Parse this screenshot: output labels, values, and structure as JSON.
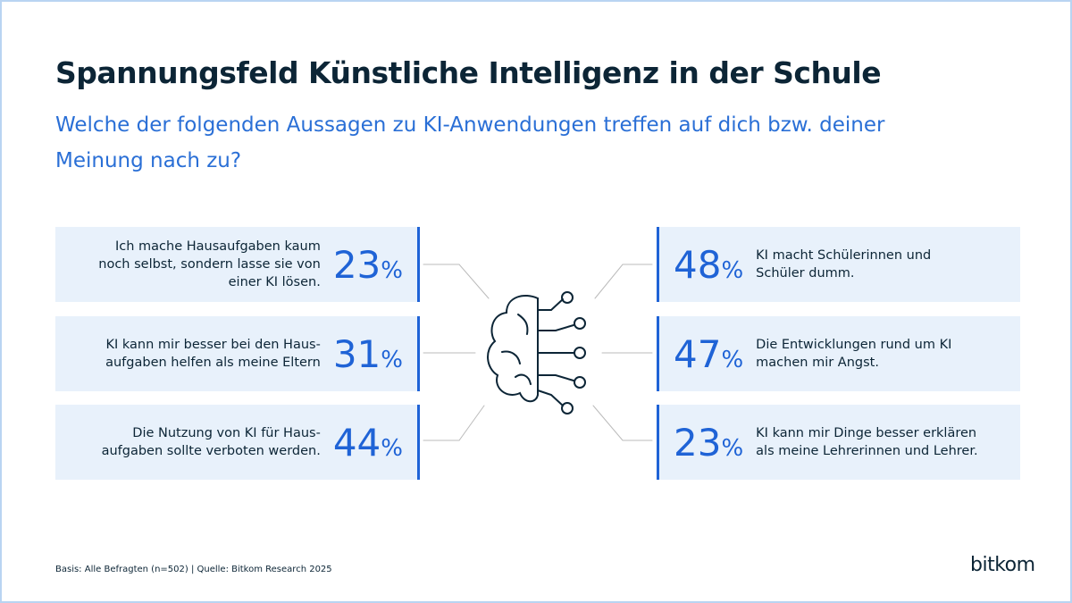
{
  "header": {
    "title": "Spannungsfeld Künstliche Intelligenz in der Schule",
    "subtitle": "Welche der folgenden Aussagen zu KI-Anwendungen treffen auf dich bzw. deiner Meinung nach zu?"
  },
  "items_left": [
    {
      "text": "Ich mache Hausaufgaben kaum noch selbst, sondern lasse sie von einer KI lösen.",
      "value": 23,
      "unit": "%"
    },
    {
      "text": "KI kann mir besser bei den Haus­aufgaben helfen als meine Eltern",
      "value": 31,
      "unit": "%"
    },
    {
      "text": "Die Nutzung von KI für Haus­aufgaben sollte verboten werden.",
      "value": 44,
      "unit": "%"
    }
  ],
  "items_right": [
    {
      "text": "KI macht Schülerinnen und Schüler dumm.",
      "value": 48,
      "unit": "%"
    },
    {
      "text": "Die Entwicklungen rund um KI machen mir Angst.",
      "value": 47,
      "unit": "%"
    },
    {
      "text": "KI kann mir Dinge besser erklären als meine Lehrerinnen und Lehrer.",
      "value": 23,
      "unit": "%"
    }
  ],
  "footer": {
    "source": "Basis: Alle Befragten (n=502) | Quelle: Bitkom Research 2025",
    "logo": "bitkom"
  }
}
